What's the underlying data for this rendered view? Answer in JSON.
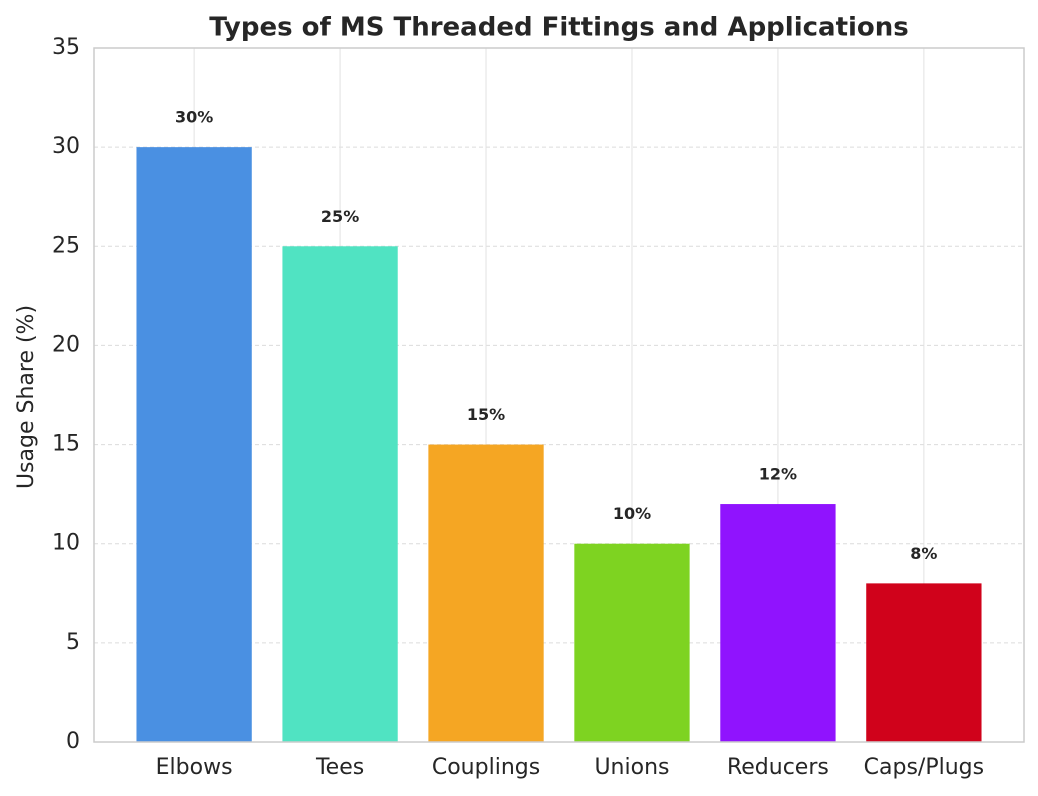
{
  "chart_data": {
    "type": "bar",
    "title": "Types of MS Threaded Fittings and Applications",
    "y_label": "Usage Share (%)",
    "categories": [
      "Elbows",
      "Tees",
      "Couplings",
      "Unions",
      "Reducers",
      "Caps/Plugs"
    ],
    "values": [
      30,
      25,
      15,
      10,
      12,
      8
    ],
    "value_labels": [
      "30%",
      "25%",
      "15%",
      "10%",
      "12%",
      "8%"
    ],
    "colors": [
      "#4a90e2",
      "#50e3c2",
      "#f5a623",
      "#7ed321",
      "#9013fe",
      "#d0021b"
    ],
    "ylim": [
      0,
      35
    ],
    "yticks": [
      0,
      5,
      10,
      15,
      20,
      25,
      30,
      35
    ],
    "grid": true
  }
}
